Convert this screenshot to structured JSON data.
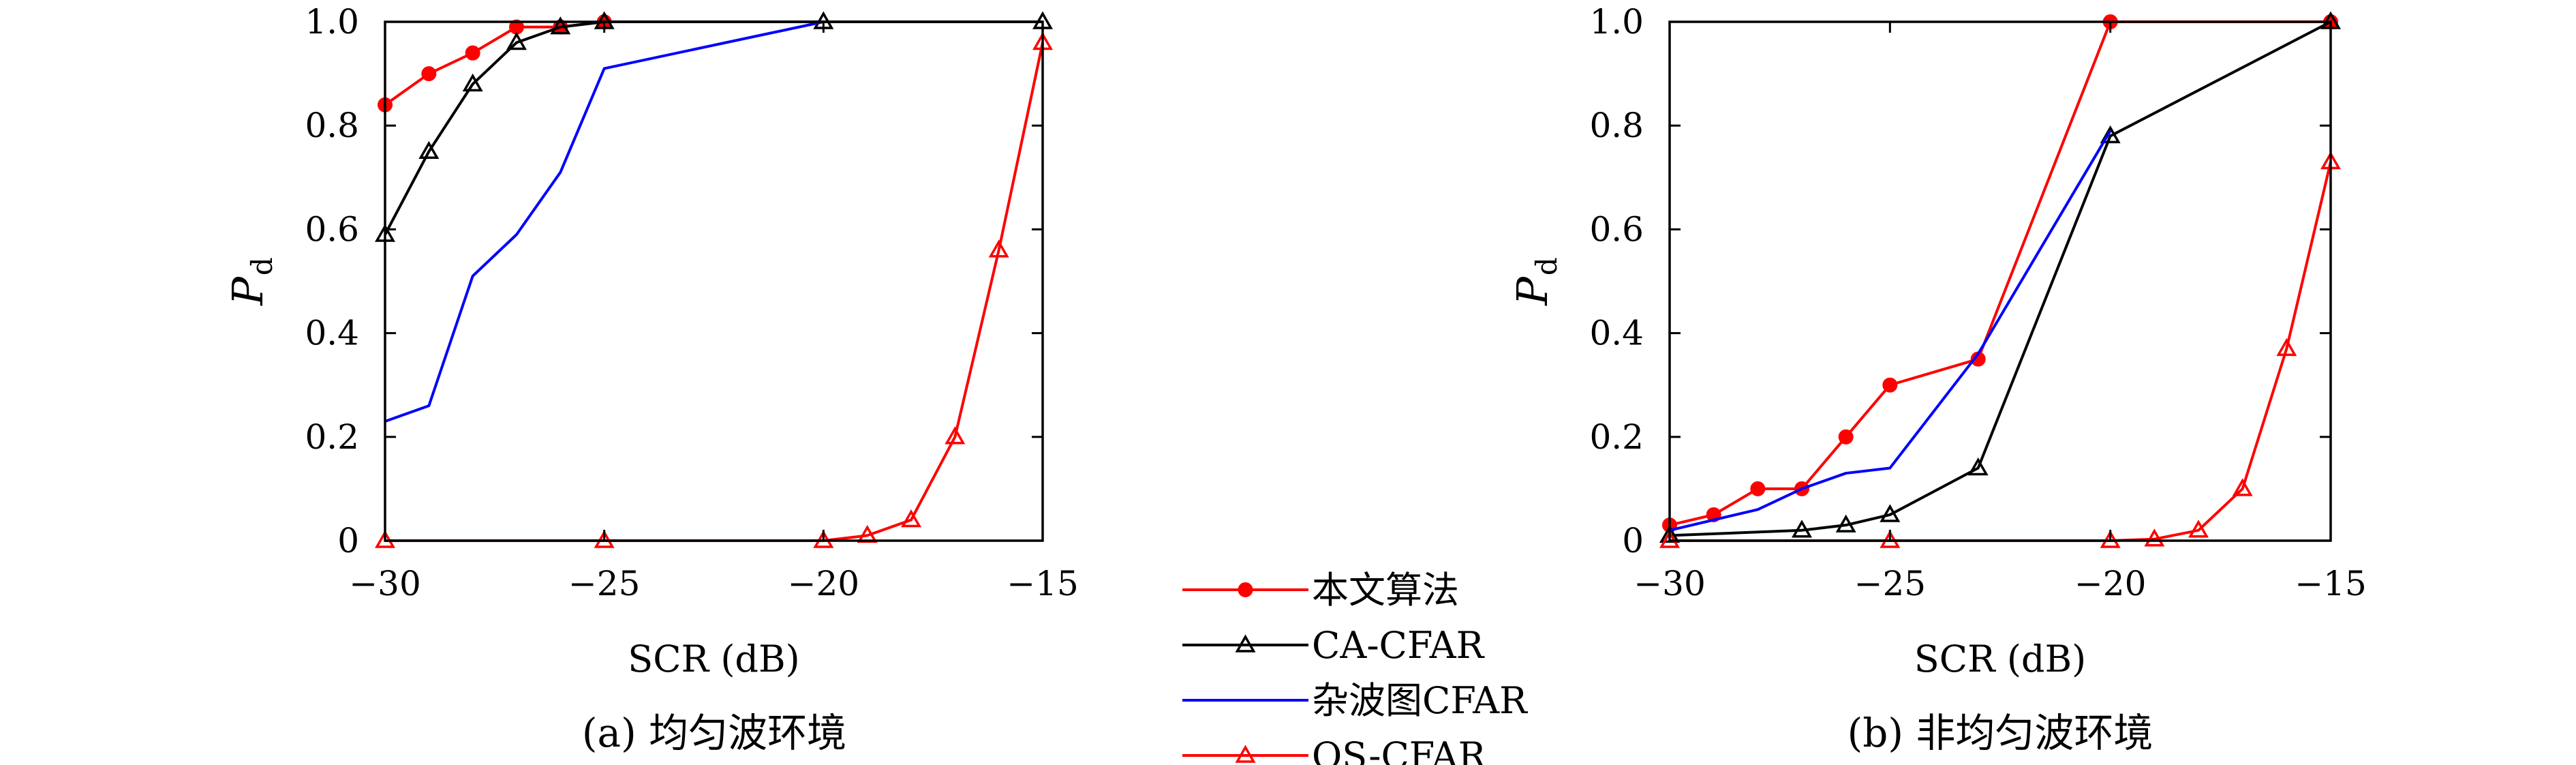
{
  "chart_data": [
    {
      "type": "line",
      "caption": "(a) 均匀波环境",
      "xlabel": "SCR (dB)",
      "ylabel_main": "P",
      "ylabel_sub": "d",
      "xlim": [
        -30,
        -15
      ],
      "ylim": [
        0,
        1.0
      ],
      "xticks": [
        -30,
        -25,
        -20,
        -15
      ],
      "xtick_labels": [
        "−30",
        "−25",
        "−20",
        "−15"
      ],
      "yticks": [
        0,
        0.2,
        0.4,
        0.6,
        0.8,
        1.0
      ],
      "ytick_labels": [
        "0",
        "0.2",
        "0.4",
        "0.6",
        "0.8",
        "1.0"
      ],
      "grid": false,
      "series": [
        {
          "name": "本文算法",
          "color": "#ff0000",
          "marker": "dot",
          "x": [
            -30,
            -29,
            -28,
            -27,
            -26,
            -25
          ],
          "y": [
            0.84,
            0.9,
            0.94,
            0.99,
            0.99,
            1.0
          ]
        },
        {
          "name": "CA-CFAR",
          "color": "#000000",
          "marker": "triangle",
          "x": [
            -30,
            -29,
            -28,
            -27,
            -26,
            -25,
            -20,
            -15
          ],
          "y": [
            0.59,
            0.75,
            0.88,
            0.96,
            0.99,
            1.0,
            1.0,
            1.0
          ]
        },
        {
          "name": "杂波图CFAR",
          "color": "#0000ff",
          "marker": "none",
          "x": [
            -30,
            -29,
            -28,
            -27,
            -26,
            -25,
            -20
          ],
          "y": [
            0.23,
            0.26,
            0.51,
            0.59,
            0.71,
            0.91,
            1.0
          ]
        },
        {
          "name": "OS-CFAR",
          "color": "#ff0000",
          "marker": "triangle",
          "x": [
            -30,
            -25,
            -20,
            -19,
            -18,
            -17,
            -16,
            -15
          ],
          "y": [
            0,
            0,
            0,
            0.01,
            0.04,
            0.2,
            0.56,
            0.96
          ]
        }
      ]
    },
    {
      "type": "line",
      "caption": "(b) 非均匀波环境",
      "xlabel": "SCR (dB)",
      "ylabel_main": "P",
      "ylabel_sub": "d",
      "xlim": [
        -30,
        -15
      ],
      "ylim": [
        0,
        1.0
      ],
      "xticks": [
        -30,
        -25,
        -20,
        -15
      ],
      "xtick_labels": [
        "−30",
        "−25",
        "−20",
        "−15"
      ],
      "yticks": [
        0,
        0.2,
        0.4,
        0.6,
        0.8,
        1.0
      ],
      "ytick_labels": [
        "0",
        "0.2",
        "0.4",
        "0.6",
        "0.8",
        "1.0"
      ],
      "grid": false,
      "series": [
        {
          "name": "本文算法",
          "color": "#ff0000",
          "marker": "dot",
          "x": [
            -30,
            -29,
            -28,
            -27,
            -26,
            -25,
            -23,
            -20,
            -15
          ],
          "y": [
            0.03,
            0.05,
            0.1,
            0.1,
            0.2,
            0.3,
            0.35,
            1.0,
            1.0
          ]
        },
        {
          "name": "CA-CFAR",
          "color": "#000000",
          "marker": "triangle",
          "x": [
            -30,
            -27,
            -26,
            -25,
            -23,
            -20,
            -15
          ],
          "y": [
            0.01,
            0.02,
            0.03,
            0.05,
            0.14,
            0.78,
            1.0
          ]
        },
        {
          "name": "杂波图CFAR",
          "color": "#0000ff",
          "marker": "none",
          "x": [
            -30,
            -28,
            -27,
            -26,
            -25,
            -23,
            -20
          ],
          "y": [
            0.02,
            0.06,
            0.1,
            0.13,
            0.14,
            0.36,
            0.79
          ]
        },
        {
          "name": "OS-CFAR",
          "color": "#ff0000",
          "marker": "triangle",
          "x": [
            -30,
            -25,
            -20,
            -19,
            -18,
            -17,
            -16,
            -15
          ],
          "y": [
            0,
            0,
            0,
            0.003,
            0.02,
            0.1,
            0.37,
            0.73
          ]
        }
      ]
    }
  ],
  "legend": {
    "placement": "center-bottom",
    "entries": [
      {
        "label": "本文算法",
        "color": "#ff0000",
        "marker": "dot"
      },
      {
        "label": "CA-CFAR",
        "color": "#000000",
        "marker": "triangle"
      },
      {
        "label": "杂波图CFAR",
        "color": "#0000ff",
        "marker": "none"
      },
      {
        "label": "OS-CFAR",
        "color": "#ff0000",
        "marker": "triangle"
      }
    ]
  }
}
